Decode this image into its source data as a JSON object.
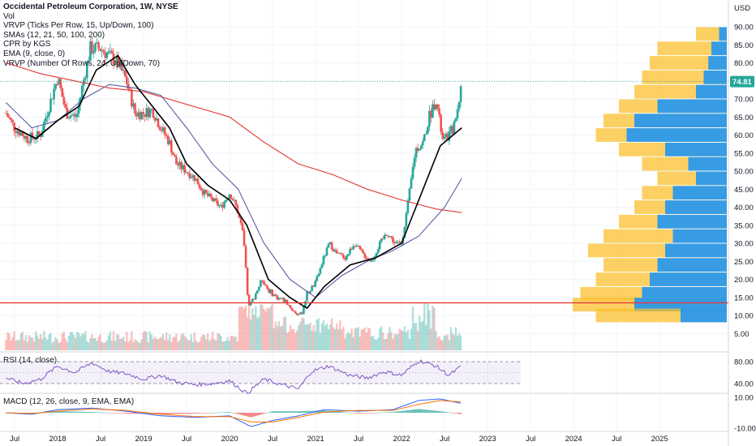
{
  "header": {
    "title": "Occidental Petroleum Corporation, 1W, NYSE",
    "currency": "USD"
  },
  "indicators": [
    "Vol",
    "VRVP (Ticks Per Row, 15, Up/Down, 100)",
    "SMAs (12, 21, 50, 100, 200)",
    "CPR by KGS",
    "EMA (9, close, 0)",
    "VRVP (Number Of Rows, 24, Up/Down, 70)"
  ],
  "panes": {
    "rsi_label": "RSI (14, close)",
    "macd_label": "MACD (12, 26, close, 9, EMA, EMA)"
  },
  "price_tag": "74.81",
  "colors": {
    "up": "#26a69a",
    "down": "#ef5350",
    "sma_black": "#000000",
    "sma_blue": "#5b5ea6",
    "sma_red": "#e53935",
    "vp_yellow": "#fbc02d",
    "vp_blue": "#2196f3",
    "rsi_line": "#7e57c2",
    "macd_line": "#2962ff",
    "signal_line": "#ff6d00",
    "horizontal_line": "#e53935"
  },
  "chart_data": {
    "type": "candlestick",
    "title": "Occidental Petroleum Corporation, 1W, NYSE",
    "currency": "USD",
    "x_ticks": [
      "Jul",
      "2018",
      "Jul",
      "2019",
      "Jul",
      "2020",
      "Jul",
      "2021",
      "Jul",
      "2022",
      "Jul",
      "2023",
      "Jul",
      "2024",
      "Jul",
      "2025"
    ],
    "y_ticks": [
      90,
      85,
      80,
      75,
      70,
      65,
      60,
      55,
      50,
      45,
      40,
      35,
      30,
      25,
      20,
      15,
      10,
      5
    ],
    "ylim": [
      0,
      92
    ],
    "last_price": 74.81,
    "horizontal_level": 13.5,
    "price_series": [
      {
        "t": 2017.4,
        "v": 66
      },
      {
        "t": 2017.5,
        "v": 62
      },
      {
        "t": 2017.65,
        "v": 59
      },
      {
        "t": 2017.8,
        "v": 60
      },
      {
        "t": 2017.95,
        "v": 72
      },
      {
        "t": 2018.0,
        "v": 76
      },
      {
        "t": 2018.1,
        "v": 66
      },
      {
        "t": 2018.22,
        "v": 65
      },
      {
        "t": 2018.3,
        "v": 75
      },
      {
        "t": 2018.38,
        "v": 84
      },
      {
        "t": 2018.5,
        "v": 84
      },
      {
        "t": 2018.6,
        "v": 82
      },
      {
        "t": 2018.7,
        "v": 80
      },
      {
        "t": 2018.8,
        "v": 75
      },
      {
        "t": 2018.9,
        "v": 66
      },
      {
        "t": 2019.0,
        "v": 66
      },
      {
        "t": 2019.1,
        "v": 67
      },
      {
        "t": 2019.2,
        "v": 62
      },
      {
        "t": 2019.3,
        "v": 58
      },
      {
        "t": 2019.38,
        "v": 52
      },
      {
        "t": 2019.5,
        "v": 50
      },
      {
        "t": 2019.6,
        "v": 48
      },
      {
        "t": 2019.7,
        "v": 44
      },
      {
        "t": 2019.8,
        "v": 42
      },
      {
        "t": 2019.9,
        "v": 40
      },
      {
        "t": 2020.0,
        "v": 44
      },
      {
        "t": 2020.08,
        "v": 40
      },
      {
        "t": 2020.16,
        "v": 32
      },
      {
        "t": 2020.22,
        "v": 12
      },
      {
        "t": 2020.3,
        "v": 16
      },
      {
        "t": 2020.38,
        "v": 20
      },
      {
        "t": 2020.45,
        "v": 17
      },
      {
        "t": 2020.55,
        "v": 15
      },
      {
        "t": 2020.65,
        "v": 14
      },
      {
        "t": 2020.75,
        "v": 11
      },
      {
        "t": 2020.83,
        "v": 10
      },
      {
        "t": 2020.9,
        "v": 16
      },
      {
        "t": 2021.0,
        "v": 19
      },
      {
        "t": 2021.08,
        "v": 25
      },
      {
        "t": 2021.16,
        "v": 30
      },
      {
        "t": 2021.25,
        "v": 27
      },
      {
        "t": 2021.35,
        "v": 26
      },
      {
        "t": 2021.45,
        "v": 30
      },
      {
        "t": 2021.55,
        "v": 27
      },
      {
        "t": 2021.65,
        "v": 25
      },
      {
        "t": 2021.75,
        "v": 30
      },
      {
        "t": 2021.83,
        "v": 33
      },
      {
        "t": 2021.92,
        "v": 30
      },
      {
        "t": 2022.0,
        "v": 30
      },
      {
        "t": 2022.08,
        "v": 42
      },
      {
        "t": 2022.16,
        "v": 56
      },
      {
        "t": 2022.25,
        "v": 58
      },
      {
        "t": 2022.32,
        "v": 65
      },
      {
        "t": 2022.4,
        "v": 70
      },
      {
        "t": 2022.48,
        "v": 58
      },
      {
        "t": 2022.55,
        "v": 60
      },
      {
        "t": 2022.62,
        "v": 63
      },
      {
        "t": 2022.7,
        "v": 74.81
      }
    ],
    "sma_black": [
      {
        "t": 2017.5,
        "v": 62
      },
      {
        "t": 2017.75,
        "v": 59
      },
      {
        "t": 2018.0,
        "v": 64
      },
      {
        "t": 2018.25,
        "v": 68
      },
      {
        "t": 2018.45,
        "v": 78
      },
      {
        "t": 2018.7,
        "v": 82
      },
      {
        "t": 2018.9,
        "v": 74
      },
      {
        "t": 2019.1,
        "v": 68
      },
      {
        "t": 2019.3,
        "v": 62
      },
      {
        "t": 2019.5,
        "v": 52
      },
      {
        "t": 2019.75,
        "v": 46
      },
      {
        "t": 2020.0,
        "v": 42
      },
      {
        "t": 2020.2,
        "v": 35
      },
      {
        "t": 2020.45,
        "v": 20
      },
      {
        "t": 2020.7,
        "v": 15
      },
      {
        "t": 2020.9,
        "v": 12
      },
      {
        "t": 2021.1,
        "v": 18
      },
      {
        "t": 2021.4,
        "v": 24
      },
      {
        "t": 2021.7,
        "v": 26
      },
      {
        "t": 2022.0,
        "v": 30
      },
      {
        "t": 2022.2,
        "v": 42
      },
      {
        "t": 2022.45,
        "v": 57
      },
      {
        "t": 2022.7,
        "v": 62
      }
    ],
    "sma_blue": [
      {
        "t": 2017.4,
        "v": 69
      },
      {
        "t": 2017.7,
        "v": 62
      },
      {
        "t": 2018.0,
        "v": 64
      },
      {
        "t": 2018.3,
        "v": 70
      },
      {
        "t": 2018.6,
        "v": 74
      },
      {
        "t": 2018.9,
        "v": 73
      },
      {
        "t": 2019.2,
        "v": 71
      },
      {
        "t": 2019.5,
        "v": 62
      },
      {
        "t": 2019.8,
        "v": 52
      },
      {
        "t": 2020.1,
        "v": 45
      },
      {
        "t": 2020.4,
        "v": 30
      },
      {
        "t": 2020.7,
        "v": 20
      },
      {
        "t": 2021.0,
        "v": 15
      },
      {
        "t": 2021.3,
        "v": 21
      },
      {
        "t": 2021.6,
        "v": 25
      },
      {
        "t": 2021.9,
        "v": 28
      },
      {
        "t": 2022.2,
        "v": 32
      },
      {
        "t": 2022.5,
        "v": 40
      },
      {
        "t": 2022.7,
        "v": 48
      }
    ],
    "sma_red": [
      {
        "t": 2017.4,
        "v": 80
      },
      {
        "t": 2017.8,
        "v": 77
      },
      {
        "t": 2018.2,
        "v": 75
      },
      {
        "t": 2018.6,
        "v": 73
      },
      {
        "t": 2019.0,
        "v": 72
      },
      {
        "t": 2019.5,
        "v": 68.5
      },
      {
        "t": 2020.0,
        "v": 65
      },
      {
        "t": 2020.4,
        "v": 58
      },
      {
        "t": 2020.8,
        "v": 52
      },
      {
        "t": 2021.2,
        "v": 49
      },
      {
        "t": 2021.6,
        "v": 45
      },
      {
        "t": 2022.0,
        "v": 42
      },
      {
        "t": 2022.4,
        "v": 39.5
      },
      {
        "t": 2022.7,
        "v": 38.5
      }
    ],
    "volume_profile": [
      {
        "price": 88,
        "up": 0.2,
        "down": 0.05
      },
      {
        "price": 84,
        "up": 0.45,
        "down": 0.1
      },
      {
        "price": 80,
        "up": 0.5,
        "down": 0.12
      },
      {
        "price": 76,
        "up": 0.55,
        "down": 0.15
      },
      {
        "price": 72,
        "up": 0.6,
        "down": 0.2
      },
      {
        "price": 68,
        "up": 0.7,
        "down": 0.45
      },
      {
        "price": 64,
        "up": 0.8,
        "down": 0.6
      },
      {
        "price": 60,
        "up": 0.85,
        "down": 0.65
      },
      {
        "price": 56,
        "up": 0.7,
        "down": 0.4
      },
      {
        "price": 52,
        "up": 0.55,
        "down": 0.25
      },
      {
        "price": 48,
        "up": 0.45,
        "down": 0.2
      },
      {
        "price": 44,
        "up": 0.55,
        "down": 0.35
      },
      {
        "price": 40,
        "up": 0.6,
        "down": 0.4
      },
      {
        "price": 36,
        "up": 0.7,
        "down": 0.45
      },
      {
        "price": 32,
        "up": 0.8,
        "down": 0.35
      },
      {
        "price": 28,
        "up": 0.9,
        "down": 0.4
      },
      {
        "price": 24,
        "up": 0.8,
        "down": 0.45
      },
      {
        "price": 20,
        "up": 0.85,
        "down": 0.5
      },
      {
        "price": 16,
        "up": 0.95,
        "down": 0.55
      },
      {
        "price": 13,
        "up": 1.0,
        "down": 0.6
      },
      {
        "price": 10,
        "up": 0.85,
        "down": 0.3
      }
    ],
    "rsi": {
      "ticks": [
        80,
        40
      ],
      "series": [
        {
          "t": 2017.4,
          "v": 50
        },
        {
          "t": 2017.6,
          "v": 40
        },
        {
          "t": 2017.8,
          "v": 48
        },
        {
          "t": 2018.0,
          "v": 72
        },
        {
          "t": 2018.2,
          "v": 60
        },
        {
          "t": 2018.4,
          "v": 78
        },
        {
          "t": 2018.6,
          "v": 62
        },
        {
          "t": 2018.8,
          "v": 58
        },
        {
          "t": 2019.0,
          "v": 48
        },
        {
          "t": 2019.2,
          "v": 55
        },
        {
          "t": 2019.4,
          "v": 42
        },
        {
          "t": 2019.6,
          "v": 38
        },
        {
          "t": 2019.8,
          "v": 40
        },
        {
          "t": 2020.0,
          "v": 45
        },
        {
          "t": 2020.2,
          "v": 22
        },
        {
          "t": 2020.4,
          "v": 48
        },
        {
          "t": 2020.6,
          "v": 38
        },
        {
          "t": 2020.8,
          "v": 30
        },
        {
          "t": 2020.95,
          "v": 62
        },
        {
          "t": 2021.15,
          "v": 72
        },
        {
          "t": 2021.4,
          "v": 55
        },
        {
          "t": 2021.6,
          "v": 50
        },
        {
          "t": 2021.8,
          "v": 62
        },
        {
          "t": 2022.0,
          "v": 55
        },
        {
          "t": 2022.2,
          "v": 82
        },
        {
          "t": 2022.4,
          "v": 72
        },
        {
          "t": 2022.55,
          "v": 55
        },
        {
          "t": 2022.7,
          "v": 72
        }
      ]
    },
    "macd": {
      "ticks": [
        10,
        -10
      ],
      "macd": [
        {
          "t": 2017.4,
          "v": 0
        },
        {
          "t": 2017.7,
          "v": -1
        },
        {
          "t": 2018.0,
          "v": 2
        },
        {
          "t": 2018.4,
          "v": 3
        },
        {
          "t": 2018.8,
          "v": 1
        },
        {
          "t": 2019.2,
          "v": -2
        },
        {
          "t": 2019.6,
          "v": -3
        },
        {
          "t": 2020.0,
          "v": -2
        },
        {
          "t": 2020.25,
          "v": -9
        },
        {
          "t": 2020.5,
          "v": -5
        },
        {
          "t": 2020.8,
          "v": -2
        },
        {
          "t": 2021.1,
          "v": 2
        },
        {
          "t": 2021.5,
          "v": 1
        },
        {
          "t": 2021.9,
          "v": 2
        },
        {
          "t": 2022.2,
          "v": 8
        },
        {
          "t": 2022.45,
          "v": 9
        },
        {
          "t": 2022.7,
          "v": 6
        }
      ],
      "signal": [
        {
          "t": 2017.4,
          "v": 0
        },
        {
          "t": 2017.7,
          "v": -0.5
        },
        {
          "t": 2018.0,
          "v": 1
        },
        {
          "t": 2018.4,
          "v": 2.5
        },
        {
          "t": 2018.8,
          "v": 1.5
        },
        {
          "t": 2019.2,
          "v": -1
        },
        {
          "t": 2019.6,
          "v": -2.5
        },
        {
          "t": 2020.0,
          "v": -2.5
        },
        {
          "t": 2020.25,
          "v": -6
        },
        {
          "t": 2020.5,
          "v": -6
        },
        {
          "t": 2020.8,
          "v": -3
        },
        {
          "t": 2021.1,
          "v": 0.5
        },
        {
          "t": 2021.5,
          "v": 1.5
        },
        {
          "t": 2021.9,
          "v": 1.5
        },
        {
          "t": 2022.2,
          "v": 5.5
        },
        {
          "t": 2022.45,
          "v": 8
        },
        {
          "t": 2022.7,
          "v": 7
        }
      ]
    }
  }
}
